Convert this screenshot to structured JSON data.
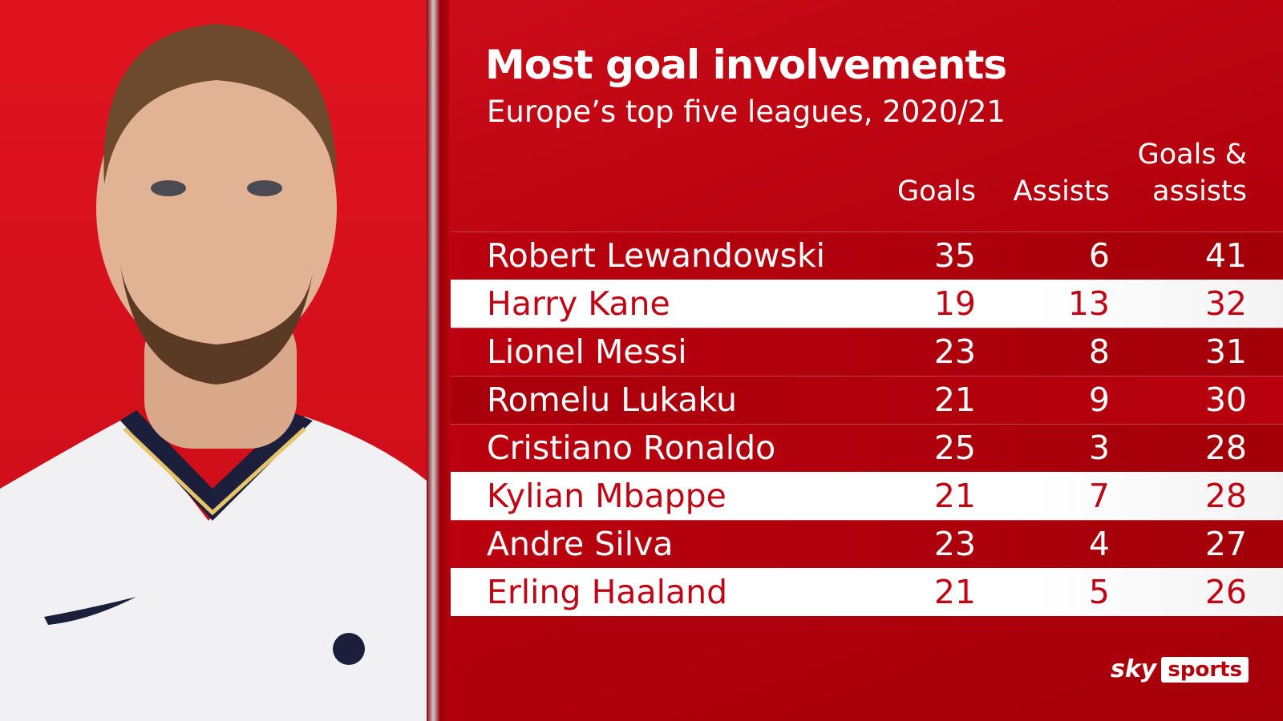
{
  "header": {
    "title": "Most goal involvements",
    "subtitle": "Europe’s top five leagues, 2020/21"
  },
  "table": {
    "columns": [
      "Goals",
      "Assists",
      "Goals & assists"
    ],
    "rows": [
      {
        "name": "Robert Lewandowski",
        "goals": 35,
        "assists": 6,
        "total": 41,
        "highlight": false
      },
      {
        "name": "Harry Kane",
        "goals": 19,
        "assists": 13,
        "total": 32,
        "highlight": true
      },
      {
        "name": "Lionel Messi",
        "goals": 23,
        "assists": 8,
        "total": 31,
        "highlight": false
      },
      {
        "name": "Romelu Lukaku",
        "goals": 21,
        "assists": 9,
        "total": 30,
        "highlight": false
      },
      {
        "name": "Cristiano Ronaldo",
        "goals": 25,
        "assists": 3,
        "total": 28,
        "highlight": false
      },
      {
        "name": "Kylian Mbappe",
        "goals": 21,
        "assists": 7,
        "total": 28,
        "highlight": true
      },
      {
        "name": "Andre Silva",
        "goals": 23,
        "assists": 4,
        "total": 27,
        "highlight": false
      },
      {
        "name": "Erling Haaland",
        "goals": 21,
        "assists": 5,
        "total": 26,
        "highlight": true
      }
    ]
  },
  "logo": {
    "brand": "sky",
    "product": "sports"
  }
}
